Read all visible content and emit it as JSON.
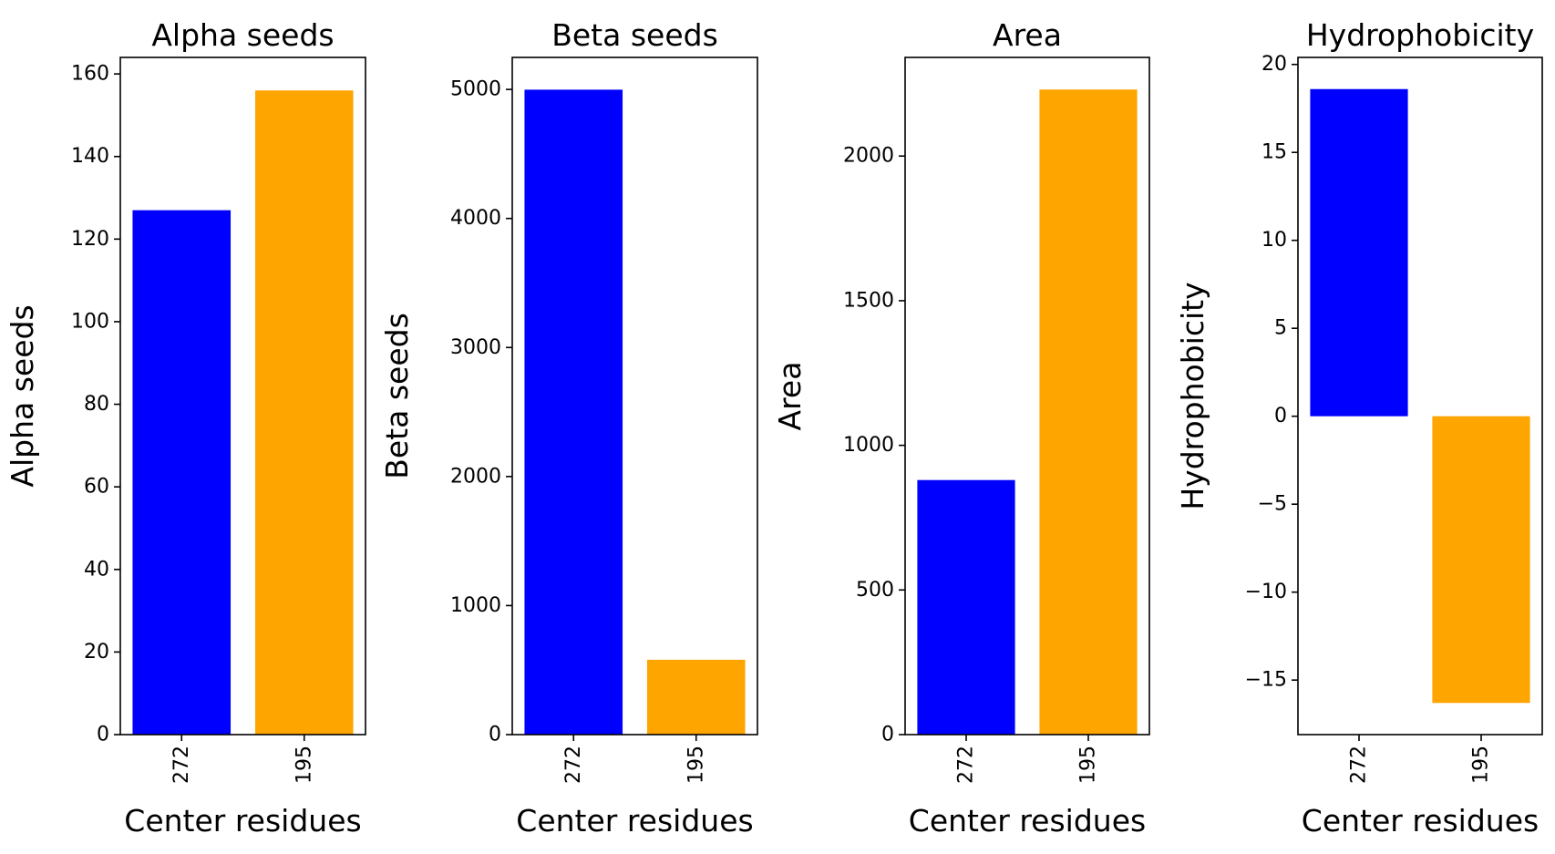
{
  "figure": {
    "background": "#ffffff"
  },
  "chart_data": [
    {
      "type": "bar",
      "title": "Alpha seeds",
      "xlabel": "Center residues",
      "ylabel": "Alpha seeds",
      "categories": [
        "272",
        "195"
      ],
      "values": [
        127,
        156
      ],
      "colors": [
        "#0000ff",
        "#ffa500"
      ],
      "ylim": [
        0,
        164
      ],
      "yticks": [
        0,
        20,
        40,
        60,
        80,
        100,
        120,
        140,
        160
      ],
      "ytick_labels": [
        "0",
        "20",
        "40",
        "60",
        "80",
        "100",
        "120",
        "140",
        "160"
      ],
      "grid": false,
      "legend": "none"
    },
    {
      "type": "bar",
      "title": "Beta seeds",
      "xlabel": "Center residues",
      "ylabel": "Beta seeds",
      "categories": [
        "272",
        "195"
      ],
      "values": [
        4998,
        580
      ],
      "colors": [
        "#0000ff",
        "#ffa500"
      ],
      "ylim": [
        0,
        5248
      ],
      "yticks": [
        0,
        1000,
        2000,
        3000,
        4000,
        5000
      ],
      "ytick_labels": [
        "0",
        "1000",
        "2000",
        "3000",
        "4000",
        "5000"
      ],
      "grid": false,
      "legend": "none"
    },
    {
      "type": "bar",
      "title": "Area",
      "xlabel": "Center residues",
      "ylabel": "Area",
      "categories": [
        "272",
        "195"
      ],
      "values": [
        880,
        2230
      ],
      "colors": [
        "#0000ff",
        "#ffa500"
      ],
      "ylim": [
        0,
        2341
      ],
      "yticks": [
        0,
        500,
        1000,
        1500,
        2000
      ],
      "ytick_labels": [
        "0",
        "500",
        "1000",
        "1500",
        "2000"
      ],
      "grid": false,
      "legend": "none"
    },
    {
      "type": "bar",
      "title": "Hydrophobicity",
      "xlabel": "Center residues",
      "ylabel": "Hydrophobicity",
      "categories": [
        "272",
        "195"
      ],
      "values": [
        18.6,
        -16.3
      ],
      "colors": [
        "#0000ff",
        "#ffa500"
      ],
      "ylim": [
        -18.1,
        20.4
      ],
      "yticks": [
        -15,
        -10,
        -5,
        0,
        5,
        10,
        15,
        20
      ],
      "ytick_labels": [
        "−15",
        "−10",
        "−5",
        "0",
        "5",
        "10",
        "15",
        "20"
      ],
      "grid": false,
      "legend": "none"
    }
  ]
}
